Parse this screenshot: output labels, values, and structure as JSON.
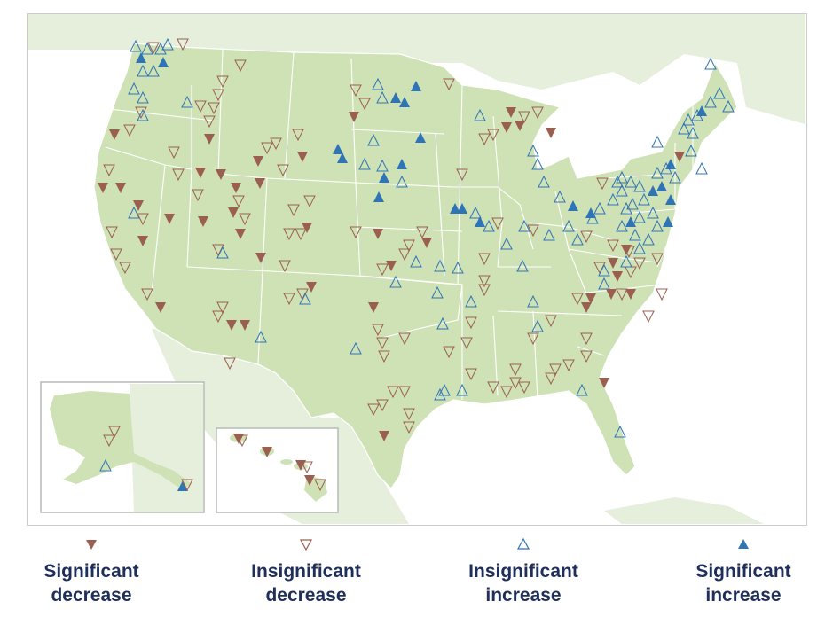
{
  "legend": {
    "significant_decrease": {
      "line1": "Significant",
      "line2": "decrease",
      "symbol": "triangle-down-filled",
      "color": "#9b5f52"
    },
    "insignificant_decrease": {
      "line1": "Insignificant",
      "line2": "decrease",
      "symbol": "triangle-down-outline",
      "color": "#9b5f52"
    },
    "insignificant_increase": {
      "line1": "Insignificant",
      "line2": "increase",
      "symbol": "triangle-up-outline",
      "color": "#2f74b5"
    },
    "significant_increase": {
      "line1": "Significant",
      "line2": "increase",
      "symbol": "triangle-up-filled",
      "color": "#2f74b5"
    }
  },
  "colors": {
    "land_us": "#cfe2b6",
    "land_other": "#e6eedc",
    "water": "#ffffff",
    "borders": "#ffffff",
    "inset_frame": "#b5bab5",
    "label_text": "#1f2f5c"
  }
}
